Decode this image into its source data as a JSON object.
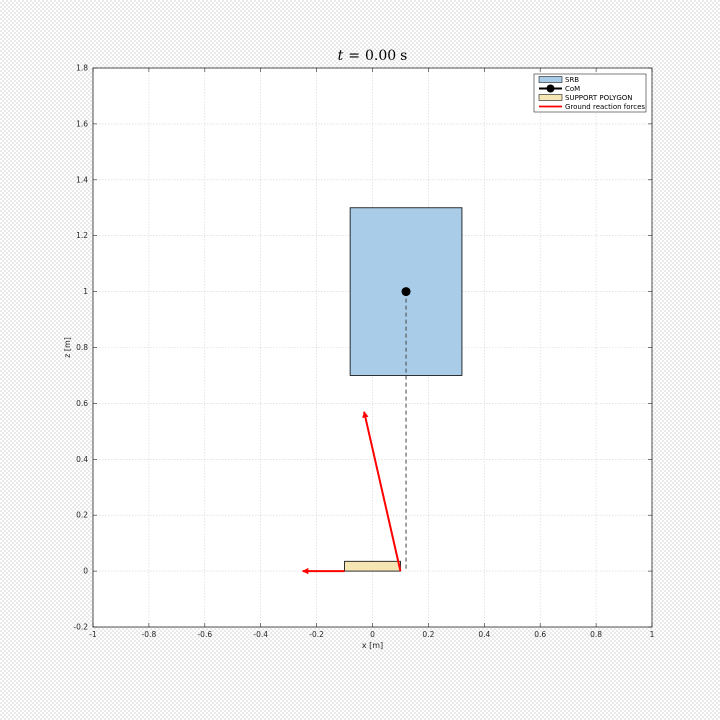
{
  "chart_data": {
    "type": "scatter",
    "title": {
      "variable": "t",
      "operator": "=",
      "value": "0.00",
      "unit": "s"
    },
    "xlabel": "x [m]",
    "ylabel": "z [m]",
    "xlim": [
      -1,
      1
    ],
    "ylim": [
      -0.2,
      1.8
    ],
    "grid": true,
    "legend_position": "top-right",
    "x_ticks": [
      {
        "value": -1,
        "label": "-1"
      },
      {
        "value": -0.8,
        "label": "-0.8"
      },
      {
        "value": -0.6,
        "label": "-0.6"
      },
      {
        "value": -0.4,
        "label": "-0.4"
      },
      {
        "value": -0.2,
        "label": "-0.2"
      },
      {
        "value": 0,
        "label": "0"
      },
      {
        "value": 0.2,
        "label": "0.2"
      },
      {
        "value": 0.4,
        "label": "0.4"
      },
      {
        "value": 0.6,
        "label": "0.6"
      },
      {
        "value": 0.8,
        "label": "0.8"
      },
      {
        "value": 1,
        "label": "1"
      }
    ],
    "y_ticks": [
      {
        "value": -0.2,
        "label": "-0.2"
      },
      {
        "value": 0,
        "label": "0"
      },
      {
        "value": 0.2,
        "label": "0.2"
      },
      {
        "value": 0.4,
        "label": "0.4"
      },
      {
        "value": 0.6,
        "label": "0.6"
      },
      {
        "value": 0.8,
        "label": "0.8"
      },
      {
        "value": 1,
        "label": "1"
      },
      {
        "value": 1.2,
        "label": "1.2"
      },
      {
        "value": 1.4,
        "label": "1.4"
      },
      {
        "value": 1.6,
        "label": "1.6"
      },
      {
        "value": 1.8,
        "label": "1.8"
      }
    ],
    "series": [
      {
        "name": "SRB",
        "kind": "rectangle",
        "x": [
          -0.08,
          0.32
        ],
        "z": [
          0.7,
          1.3
        ],
        "color": "#a9cde9",
        "edge_color": "#1a1a1a"
      },
      {
        "name": "CoM",
        "kind": "point",
        "x": 0.12,
        "z": 1.0,
        "color": "#000000"
      },
      {
        "name": "SUPPORT POLYGON",
        "kind": "rectangle",
        "x": [
          -0.1,
          0.1
        ],
        "z": [
          0.0,
          0.035
        ],
        "color": "#f6e6b3",
        "edge_color": "#1a1a1a"
      },
      {
        "name": "Ground reaction forces",
        "kind": "vectors",
        "color": "#ff0000",
        "vectors": [
          {
            "x0": 0.1,
            "z0": 0.0,
            "x1": -0.03,
            "z1": 0.57
          },
          {
            "x0": -0.1,
            "z0": 0.0,
            "x1": -0.25,
            "z1": 0.0
          }
        ]
      },
      {
        "name": "CoM projection",
        "kind": "dashed-line",
        "x": [
          0.12,
          0.12
        ],
        "z": [
          1.0,
          0.0
        ],
        "color": "#444444"
      }
    ]
  }
}
